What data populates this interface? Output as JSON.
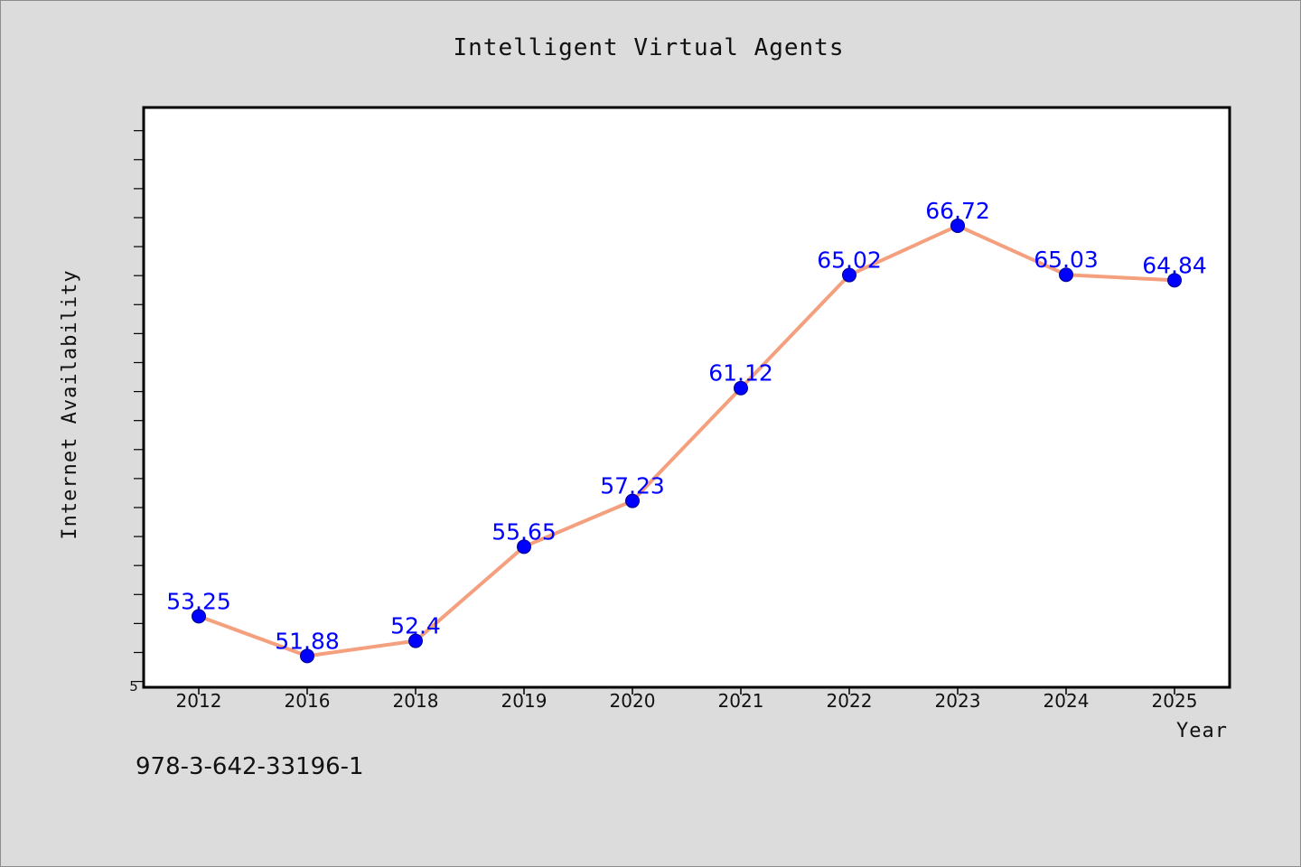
{
  "chart_data": {
    "type": "line",
    "title": "Intelligent Virtual Agents",
    "xlabel": "Year",
    "ylabel": "Internet Availability",
    "categories": [
      "2012",
      "2016",
      "2018",
      "2019",
      "2020",
      "2021",
      "2022",
      "2023",
      "2024",
      "2025"
    ],
    "series": [
      {
        "values": [
          53.25,
          51.88,
          52.4,
          55.65,
          57.23,
          61.12,
          65.02,
          66.72,
          65.03,
          64.84
        ],
        "labels": [
          "53.25",
          "51.88",
          "52.4",
          "55.65",
          "57.23",
          "61.12",
          "65.02",
          "66.72",
          "65.03",
          "64.84"
        ]
      }
    ],
    "ylim": [
      50.8,
      70.8
    ],
    "y_min_tick_label": "5",
    "grid": false,
    "legend": "none",
    "colors": {
      "line": "#f4a07e",
      "marker": "#0000ff",
      "data_label": "#0000ff",
      "plot_background": "#ffffff",
      "page_background": "#dcdcdc"
    }
  },
  "footer": {
    "code": "978-3-642-33196-1"
  }
}
